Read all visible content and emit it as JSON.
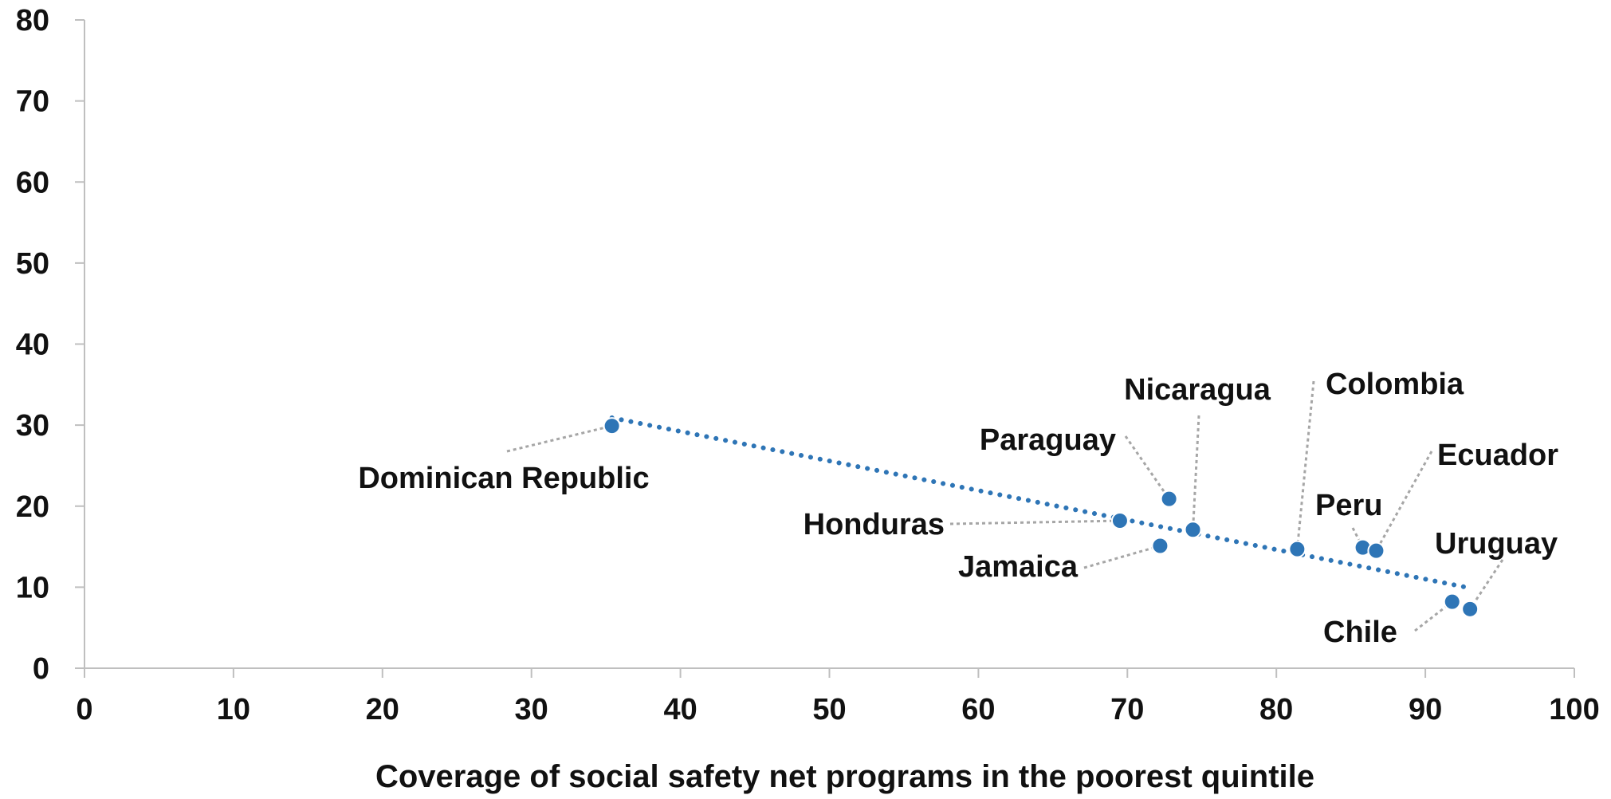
{
  "chart_data": {
    "type": "scatter",
    "title": "",
    "xlabel": "Coverage of social safety net programs in the poorest quintile",
    "ylabel": "",
    "xlim": [
      0,
      100
    ],
    "ylim": [
      0,
      80
    ],
    "x_ticks": [
      0,
      10,
      20,
      30,
      40,
      50,
      60,
      70,
      80,
      90,
      100
    ],
    "y_ticks": [
      0,
      10,
      20,
      30,
      40,
      50,
      60,
      70,
      80
    ],
    "grid": false,
    "legend": "none",
    "colors": {
      "points": "#2E75B6",
      "trendline": "#2E75B6",
      "leader_lines": "#A6A6A6",
      "axis": "#BFBFBF",
      "text": "#111111"
    },
    "points": [
      {
        "label": "Dominican Republic",
        "x": 35.4,
        "y": 29.9
      },
      {
        "label": "Honduras",
        "x": 69.5,
        "y": 18.2
      },
      {
        "label": "Jamaica",
        "x": 72.2,
        "y": 15.1
      },
      {
        "label": "Paraguay",
        "x": 72.8,
        "y": 20.9
      },
      {
        "label": "Nicaragua",
        "x": 74.4,
        "y": 17.1
      },
      {
        "label": "Colombia",
        "x": 81.4,
        "y": 14.7
      },
      {
        "label": "Peru",
        "x": 85.8,
        "y": 14.9
      },
      {
        "label": "Ecuador",
        "x": 86.7,
        "y": 14.5
      },
      {
        "label": "Chile",
        "x": 91.8,
        "y": 8.2
      },
      {
        "label": "Uruguay",
        "x": 93.0,
        "y": 7.3
      }
    ],
    "trendline": {
      "type": "linear",
      "start": {
        "x": 35.4,
        "y": 30.9
      },
      "end": {
        "x": 93.0,
        "y": 9.9
      }
    }
  }
}
